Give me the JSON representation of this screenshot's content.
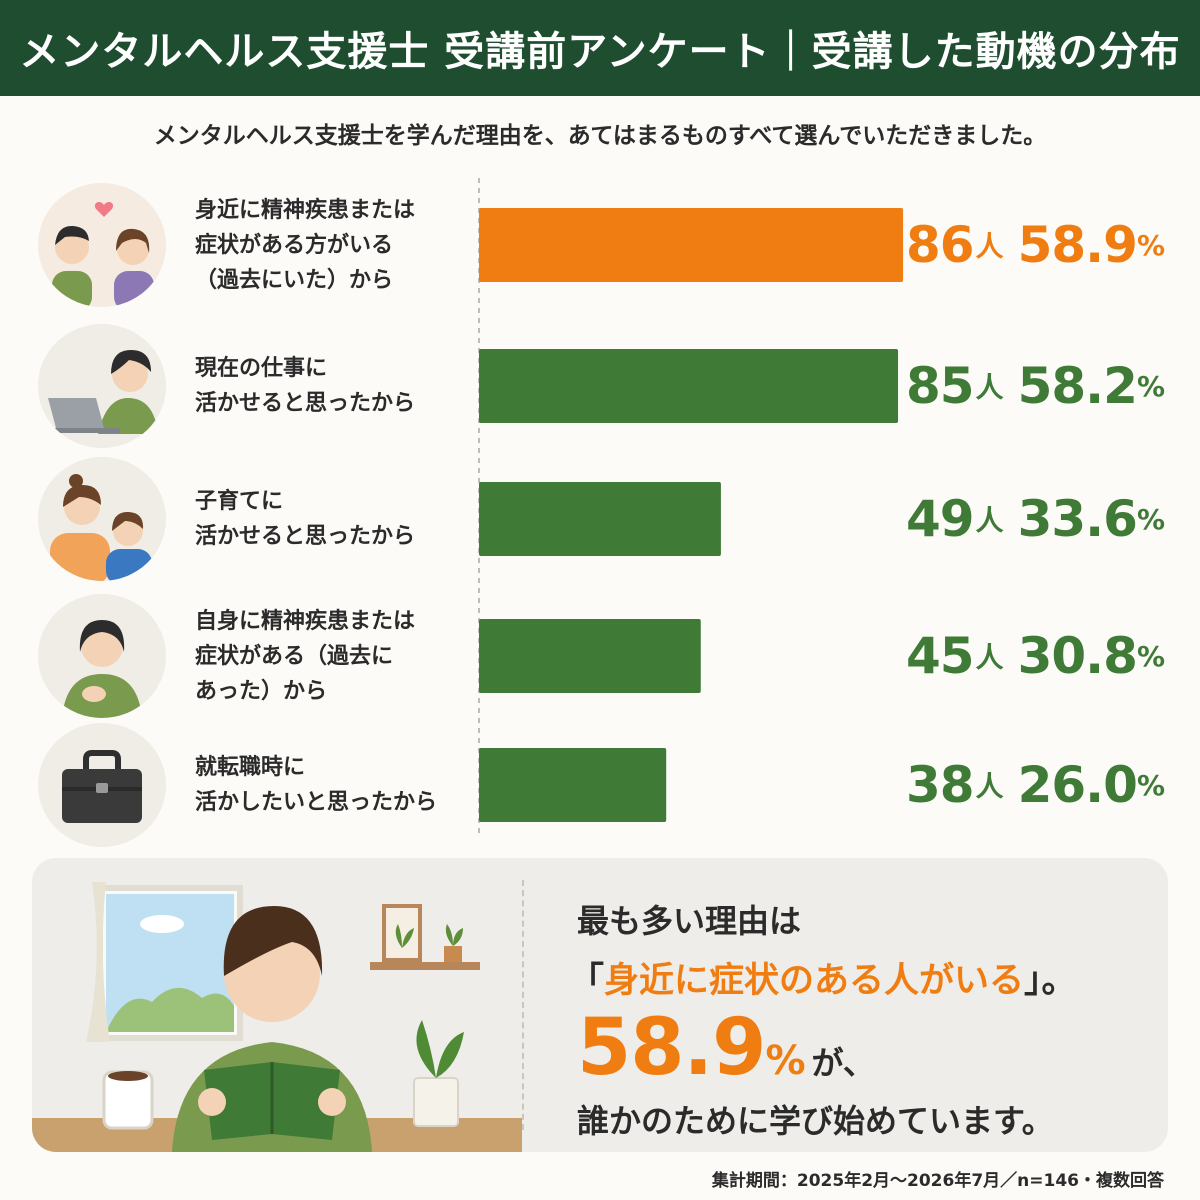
{
  "header": {
    "title": "メンタルヘルス支援士 受講前アンケート｜受講した動機の分布"
  },
  "subtitle": "メンタルヘルス支援士を学んだ理由を、あてはまるものすべて選んでいただきました。",
  "colors": {
    "header_bg": "#1e4d2f",
    "highlight": "#f07d12",
    "bar": "#3f7a36"
  },
  "chart_data": {
    "type": "bar",
    "orientation": "horizontal",
    "categories": [
      "身近に精神疾患または症状がある方がいる（過去にいた）から",
      "現在の仕事に活かせると思ったから",
      "子育てに活かせると思ったから",
      "自身に精神疾患または症状がある（過去にあった）から",
      "就転職時に活かしたいと思ったから"
    ],
    "values": [
      86,
      85,
      49,
      45,
      38
    ],
    "percents": [
      58.9,
      58.2,
      33.6,
      30.8,
      26.0
    ],
    "highlight_index": 0,
    "unit_count": "人",
    "unit_percent": "%",
    "n": 146
  },
  "rows": [
    {
      "icon": "couple-heart-icon",
      "label_lines": [
        "身近に精神疾患または",
        "症状がある方がいる",
        "（過去にいた）から"
      ],
      "count": "86",
      "percent": "58.9"
    },
    {
      "icon": "laptop-worker-icon",
      "label_lines": [
        "現在の仕事に",
        "活かせると思ったから"
      ],
      "count": "85",
      "percent": "58.2"
    },
    {
      "icon": "parent-child-icon",
      "label_lines": [
        "子育てに",
        "活かせると思ったから"
      ],
      "count": "49",
      "percent": "33.6"
    },
    {
      "icon": "hand-on-chest-icon",
      "label_lines": [
        "自身に精神疾患または",
        "症状がある（過去に",
        "あった）から"
      ],
      "count": "45",
      "percent": "30.8"
    },
    {
      "icon": "briefcase-icon",
      "label_lines": [
        "就転職時に",
        "活かしたいと思ったから"
      ],
      "count": "38",
      "percent": "26.0"
    }
  ],
  "units": {
    "count": "人",
    "percent": "%"
  },
  "summary": {
    "line1": "最も多い理由は",
    "line2_open": "「",
    "line2_highlight": "身近に症状のある人がいる",
    "line2_close": "」。",
    "big_value": "58.9",
    "big_unit": "%",
    "line3_suffix": "が、",
    "line4": "誰かのために学び始めています。",
    "illustration": "reading-person-icon"
  },
  "footnote": "集計期間：2025年2月〜2026年7月／n=146・複数回答"
}
